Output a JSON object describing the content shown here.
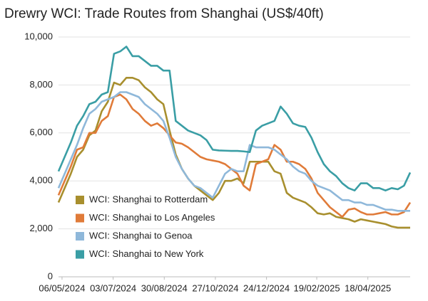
{
  "chart_data": {
    "type": "line",
    "title": "Drewry WCI: Trade Routes from Shanghai (US$/40ft)",
    "x": [
      "2024-05-02",
      "2024-05-09",
      "2024-05-16",
      "2024-05-23",
      "2024-05-30",
      "2024-06-06",
      "2024-06-13",
      "2024-06-20",
      "2024-06-27",
      "2024-07-04",
      "2024-07-11",
      "2024-07-18",
      "2024-07-25",
      "2024-08-01",
      "2024-08-08",
      "2024-08-15",
      "2024-08-22",
      "2024-08-29",
      "2024-09-05",
      "2024-09-12",
      "2024-09-19",
      "2024-09-26",
      "2024-10-03",
      "2024-10-10",
      "2024-10-17",
      "2024-10-24",
      "2024-10-31",
      "2024-11-07",
      "2024-11-14",
      "2024-11-21",
      "2024-11-28",
      "2024-12-05",
      "2024-12-12",
      "2024-12-19",
      "2024-12-26",
      "2025-01-02",
      "2025-01-09",
      "2025-01-16",
      "2025-01-23",
      "2025-01-30",
      "2025-02-06",
      "2025-02-13",
      "2025-02-20",
      "2025-02-27",
      "2025-03-06",
      "2025-03-13",
      "2025-03-20",
      "2025-03-27",
      "2025-04-03",
      "2025-04-10",
      "2025-04-17",
      "2025-04-24",
      "2025-05-01",
      "2025-05-08",
      "2025-05-15",
      "2025-05-22",
      "2025-05-29",
      "2025-06-05"
    ],
    "xlim": [
      "2024-05-02",
      "2025-06-05"
    ],
    "xticks": [
      {
        "value": "2024-05-06",
        "label": "06/05/2024"
      },
      {
        "value": "2024-07-03",
        "label": "03/07/2024"
      },
      {
        "value": "2024-08-30",
        "label": "30/08/2024"
      },
      {
        "value": "2024-10-27",
        "label": "27/10/2024"
      },
      {
        "value": "2024-12-24",
        "label": "24/12/2024"
      },
      {
        "value": "2025-02-19",
        "label": "19/02/2025"
      },
      {
        "value": "2025-04-18",
        "label": "18/04/2025"
      }
    ],
    "ylim": [
      0,
      10000
    ],
    "yticks": [
      0,
      {
        "value": 2000,
        "label": "2,000"
      },
      {
        "value": 4000,
        "label": "4,000"
      },
      {
        "value": 6000,
        "label": "6,000"
      },
      {
        "value": 8000,
        "label": "8,000"
      },
      {
        "value": 10000,
        "label": "10,000"
      }
    ],
    "grid": true,
    "legend": "lower-left",
    "series": [
      {
        "name": "WCI: Shanghai to Rotterdam",
        "color": "#a88f2e",
        "values": [
          3100,
          3700,
          4300,
          5000,
          5300,
          5900,
          6100,
          6900,
          7300,
          8100,
          8000,
          8300,
          8300,
          8200,
          7900,
          7700,
          7400,
          7200,
          6100,
          5100,
          4500,
          4100,
          3800,
          3600,
          3400,
          3200,
          3500,
          4000,
          4000,
          4100,
          3900,
          4800,
          4800,
          4800,
          4800,
          4400,
          4300,
          3500,
          3300,
          3200,
          3100,
          2900,
          2650,
          2600,
          2650,
          2500,
          2450,
          2400,
          2300,
          2400,
          2350,
          2300,
          2250,
          2200,
          2100,
          2050,
          2050,
          2050
        ]
      },
      {
        "name": "WCI: Shanghai to Los Angeles",
        "color": "#e07b39",
        "values": [
          3400,
          4000,
          4600,
          5300,
          5400,
          6000,
          6000,
          6500,
          6700,
          7500,
          7600,
          7400,
          7000,
          6800,
          6500,
          6300,
          6400,
          6200,
          5900,
          5600,
          5550,
          5400,
          5200,
          5000,
          4900,
          4850,
          4800,
          4700,
          4500,
          4300,
          3800,
          3600,
          4700,
          4800,
          4900,
          5500,
          5300,
          4800,
          4800,
          4700,
          4500,
          4100,
          3500,
          3200,
          2900,
          2700,
          2500,
          2800,
          2850,
          2700,
          2600,
          2600,
          2650,
          2700,
          2600,
          2600,
          2700,
          3100
        ]
      },
      {
        "name": "WCI: Shanghai to Genoa",
        "color": "#8fb8da",
        "values": [
          3700,
          4300,
          4900,
          5500,
          6200,
          6800,
          7000,
          7300,
          7400,
          7500,
          7700,
          7700,
          7600,
          7500,
          7200,
          7000,
          6800,
          6500,
          5800,
          5000,
          4500,
          4100,
          3800,
          3700,
          3500,
          3300,
          3800,
          4300,
          4500,
          4400,
          4400,
          5500,
          5400,
          5400,
          5400,
          5300,
          5100,
          4900,
          4600,
          4400,
          4300,
          4000,
          3800,
          3700,
          3600,
          3400,
          3200,
          3200,
          3100,
          3100,
          3000,
          3000,
          2900,
          2800,
          2800,
          2750,
          2750,
          2750
        ]
      },
      {
        "name": "WCI: Shanghai to New York",
        "color": "#3a9ea5",
        "values": [
          4400,
          5000,
          5600,
          6300,
          6700,
          7200,
          7300,
          7600,
          7700,
          9300,
          9400,
          9600,
          9200,
          9200,
          9000,
          8800,
          8800,
          8600,
          8600,
          6500,
          6300,
          6100,
          6000,
          5900,
          5700,
          5300,
          5270,
          5260,
          5250,
          5250,
          5230,
          5200,
          6100,
          6300,
          6400,
          6500,
          7100,
          6800,
          6400,
          6300,
          6250,
          5800,
          5200,
          4700,
          4400,
          4200,
          3900,
          3700,
          3600,
          3900,
          3900,
          3700,
          3700,
          3600,
          3700,
          3650,
          3800,
          4350
        ]
      }
    ]
  }
}
